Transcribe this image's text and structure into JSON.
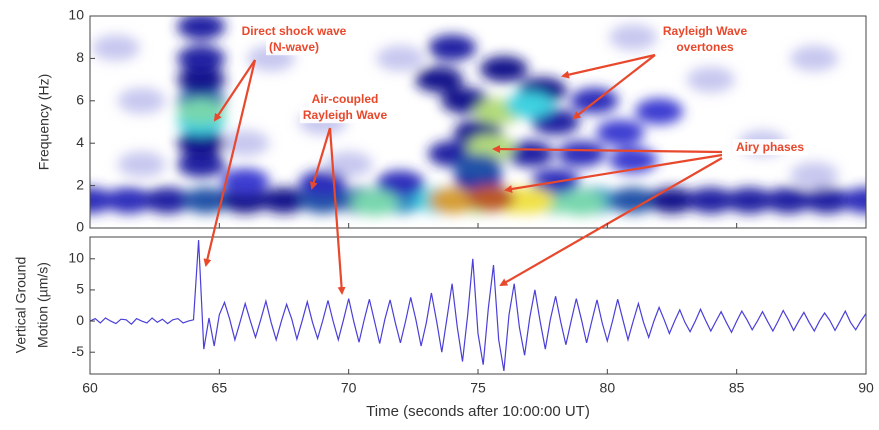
{
  "chart_data": [
    {
      "type": "spectrogram",
      "ylabel": "Frequency (Hz)",
      "xlim": [
        60,
        90
      ],
      "ylim": [
        0,
        10
      ],
      "yticks": [
        0,
        2,
        4,
        6,
        8,
        10
      ],
      "x": [
        62,
        62,
        67,
        69,
        70,
        84,
        86,
        88,
        81,
        72,
        66,
        88,
        61,
        60,
        61.5,
        63,
        64.5,
        66,
        67.5,
        69,
        70.5,
        72,
        73.5,
        75,
        76.5,
        78,
        79.5,
        81,
        82.5,
        84,
        85.5,
        87,
        88.5,
        90,
        66,
        69,
        72,
        75,
        78,
        64.3,
        64.3,
        64.3,
        64.3,
        64.3,
        64.3,
        64.3,
        74,
        73.5,
        74.5,
        76,
        77.5,
        75,
        78,
        79.5,
        80.5,
        82,
        77,
        74,
        79,
        81,
        71,
        79,
        74,
        77,
        75.5,
        64.3,
        75.5,
        75.8,
        77,
        75
      ],
      "y": [
        6,
        3,
        8,
        5,
        3,
        7,
        4,
        8,
        9,
        8,
        4,
        2.5,
        8.5,
        1.3,
        1.3,
        1.3,
        1.3,
        1.3,
        1.3,
        1.3,
        1.3,
        1.3,
        1.3,
        1.3,
        1.3,
        1.3,
        1.3,
        1.3,
        1.3,
        1.3,
        1.3,
        1.3,
        1.3,
        1.3,
        2.2,
        2.1,
        2.1,
        2.3,
        2.2,
        3,
        4,
        5,
        6,
        7,
        8,
        9.5,
        8.5,
        7,
        6,
        7.5,
        6.5,
        4.5,
        5,
        6,
        4.5,
        5.5,
        3.5,
        3.5,
        3.5,
        3.2,
        1.2,
        1.2,
        1.3,
        1.3,
        1.4,
        5.5,
        3.8,
        5.5,
        5.8,
        2.9
      ],
      "values": [
        0.2,
        0.2,
        0.2,
        0.2,
        0.2,
        0.2,
        0.2,
        0.2,
        0.2,
        0.2,
        0.2,
        0.2,
        0.2,
        0.45,
        0.45,
        0.5,
        0.6,
        0.55,
        0.55,
        0.6,
        0.6,
        0.65,
        0.7,
        0.8,
        0.85,
        0.75,
        0.65,
        0.6,
        0.55,
        0.5,
        0.5,
        0.5,
        0.5,
        0.45,
        0.4,
        0.45,
        0.45,
        0.5,
        0.45,
        0.5,
        0.55,
        0.7,
        0.6,
        0.55,
        0.5,
        0.5,
        0.5,
        0.55,
        0.55,
        0.55,
        0.55,
        0.55,
        0.5,
        0.45,
        0.4,
        0.4,
        0.5,
        0.5,
        0.45,
        0.4,
        0.75,
        0.75,
        0.9,
        0.85,
        0.95,
        0.75,
        0.8,
        0.8,
        0.7,
        0.6
      ],
      "annotations": [
        {
          "lines": [
            "Direct shock wave",
            "(N-wave)"
          ]
        },
        {
          "lines": [
            "Rayleigh Wave",
            "overtones"
          ]
        },
        {
          "lines": [
            "Air-coupled",
            "Rayleigh Wave"
          ]
        },
        {
          "lines": [
            "Airy phases"
          ]
        }
      ]
    },
    {
      "type": "line",
      "ylabel": [
        "Vertical Ground",
        "Motion (µm/s)"
      ],
      "xlabel": "Time (seconds after 10:00:00 UT)",
      "xlim": [
        60,
        90
      ],
      "xticks": [
        60,
        65,
        70,
        75,
        80,
        85,
        90
      ],
      "ylim": [
        -8.5,
        13.5
      ],
      "yticks": [
        -5,
        0,
        5,
        10
      ],
      "color": "#4a3fd8",
      "x": [
        60,
        60.2,
        60.4,
        60.6,
        60.8,
        61,
        61.2,
        61.4,
        61.6,
        61.8,
        62,
        62.2,
        62.4,
        62.6,
        62.8,
        63,
        63.2,
        63.4,
        63.6,
        63.8,
        64,
        64.2,
        64.4,
        64.6,
        64.8,
        65,
        65.2,
        65.4,
        65.6,
        65.8,
        66,
        66.2,
        66.4,
        66.6,
        66.8,
        67,
        67.2,
        67.4,
        67.6,
        67.8,
        68,
        68.2,
        68.4,
        68.6,
        68.8,
        69,
        69.2,
        69.4,
        69.6,
        69.8,
        70,
        70.2,
        70.4,
        70.6,
        70.8,
        71,
        71.2,
        71.4,
        71.6,
        71.8,
        72,
        72.2,
        72.4,
        72.6,
        72.8,
        73,
        73.2,
        73.4,
        73.6,
        73.8,
        74,
        74.2,
        74.4,
        74.6,
        74.8,
        75,
        75.2,
        75.4,
        75.6,
        75.8,
        76,
        76.2,
        76.4,
        76.6,
        76.8,
        77,
        77.2,
        77.4,
        77.6,
        77.8,
        78,
        78.2,
        78.4,
        78.6,
        78.8,
        79,
        79.2,
        79.4,
        79.6,
        79.8,
        80,
        80.2,
        80.4,
        80.6,
        80.8,
        81,
        81.2,
        81.4,
        81.6,
        81.8,
        82,
        82.2,
        82.4,
        82.6,
        82.8,
        83,
        83.2,
        83.4,
        83.6,
        83.8,
        84,
        84.2,
        84.4,
        84.6,
        84.8,
        85,
        85.2,
        85.4,
        85.6,
        85.8,
        86,
        86.2,
        86.4,
        86.6,
        86.8,
        87,
        87.2,
        87.4,
        87.6,
        87.8,
        88,
        88.2,
        88.4,
        88.6,
        88.8,
        89,
        89.2,
        89.4,
        89.6,
        89.8,
        90
      ],
      "values": [
        0,
        0.4,
        -0.3,
        0.5,
        0,
        -0.4,
        0.3,
        0.2,
        -0.5,
        0.4,
        0,
        -0.3,
        0.5,
        -0.2,
        0.3,
        -0.4,
        0.2,
        0.4,
        -0.3,
        0,
        0.2,
        13,
        -4.5,
        0.5,
        -4,
        1,
        3,
        0.3,
        -3,
        -0.2,
        2.8,
        0,
        -2.6,
        0.2,
        3.2,
        -0.2,
        -3,
        0,
        2.7,
        0.3,
        -2.9,
        0,
        3.1,
        -0.2,
        -2.8,
        0.1,
        3.3,
        0,
        -3,
        0.2,
        3.6,
        -0.1,
        -3.4,
        0.2,
        3.5,
        0,
        -3.6,
        0.3,
        3.4,
        -0.2,
        -3.5,
        0,
        3.8,
        0.2,
        -4,
        -0.3,
        4.5,
        0,
        -5,
        0.5,
        6,
        -1,
        -6.5,
        1,
        10,
        -2,
        -7,
        2,
        9,
        -3,
        -8,
        1,
        6,
        -1,
        -5.5,
        0.5,
        5,
        0,
        -4.5,
        0.3,
        4,
        -0.2,
        -3.8,
        0,
        3.6,
        0.2,
        -3.5,
        0,
        3.4,
        -0.3,
        -3.2,
        0,
        3.5,
        0.2,
        -3,
        0,
        2.8,
        -0.2,
        -2.6,
        0,
        2.2,
        0.2,
        -2,
        0,
        1.8,
        -0.2,
        -1.7,
        0,
        1.9,
        0.1,
        -1.6,
        0,
        1.5,
        -0.2,
        -1.8,
        0,
        1.6,
        0.2,
        -1.4,
        0,
        1.5,
        -0.1,
        -1.6,
        0,
        1.7,
        0.2,
        -1.5,
        0,
        1.4,
        -0.2,
        -1.6,
        0,
        1.3,
        0.1,
        -1.5,
        0,
        1.6,
        -0.2,
        -1.4,
        0,
        1.2
      ]
    }
  ]
}
